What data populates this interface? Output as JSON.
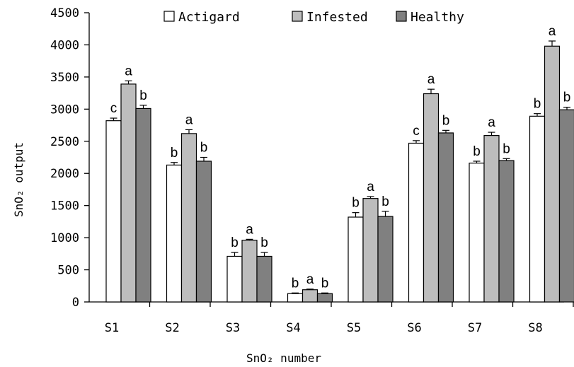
{
  "chart_data": {
    "type": "bar",
    "title": "",
    "xlabel": "SnO₂ number",
    "ylabel": "SnO₂ output",
    "ylim": [
      0,
      4500
    ],
    "yticks": [
      0,
      500,
      1000,
      1500,
      2000,
      2500,
      3000,
      3500,
      4000,
      4500
    ],
    "grid": false,
    "legend_position": "top",
    "categories": [
      "S1",
      "S2",
      "S3",
      "S4",
      "S5",
      "S6",
      "S7",
      "S8"
    ],
    "series": [
      {
        "name": "Actigard",
        "color": "#ffffff",
        "values": [
          2820,
          2130,
          710,
          130,
          1320,
          2470,
          2160,
          2890
        ],
        "errors": [
          40,
          40,
          60,
          10,
          70,
          40,
          30,
          40
        ],
        "sig_labels": [
          "c",
          "b",
          "b",
          "b",
          "b",
          "c",
          "b",
          "b"
        ]
      },
      {
        "name": "Infested",
        "color": "#bdbdbd",
        "values": [
          3390,
          2620,
          960,
          190,
          1610,
          3240,
          2590,
          3980
        ],
        "errors": [
          50,
          60,
          15,
          10,
          30,
          70,
          50,
          80
        ],
        "sig_labels": [
          "a",
          "a",
          "a",
          "a",
          "a",
          "a",
          "a",
          "a"
        ]
      },
      {
        "name": "Healthy",
        "color": "#808080",
        "values": [
          3010,
          2190,
          710,
          130,
          1330,
          2630,
          2200,
          2990
        ],
        "errors": [
          50,
          60,
          60,
          10,
          80,
          40,
          30,
          40
        ],
        "sig_labels": [
          "b",
          "b",
          "b",
          "b",
          "b",
          "b",
          "b",
          "b"
        ]
      }
    ]
  }
}
